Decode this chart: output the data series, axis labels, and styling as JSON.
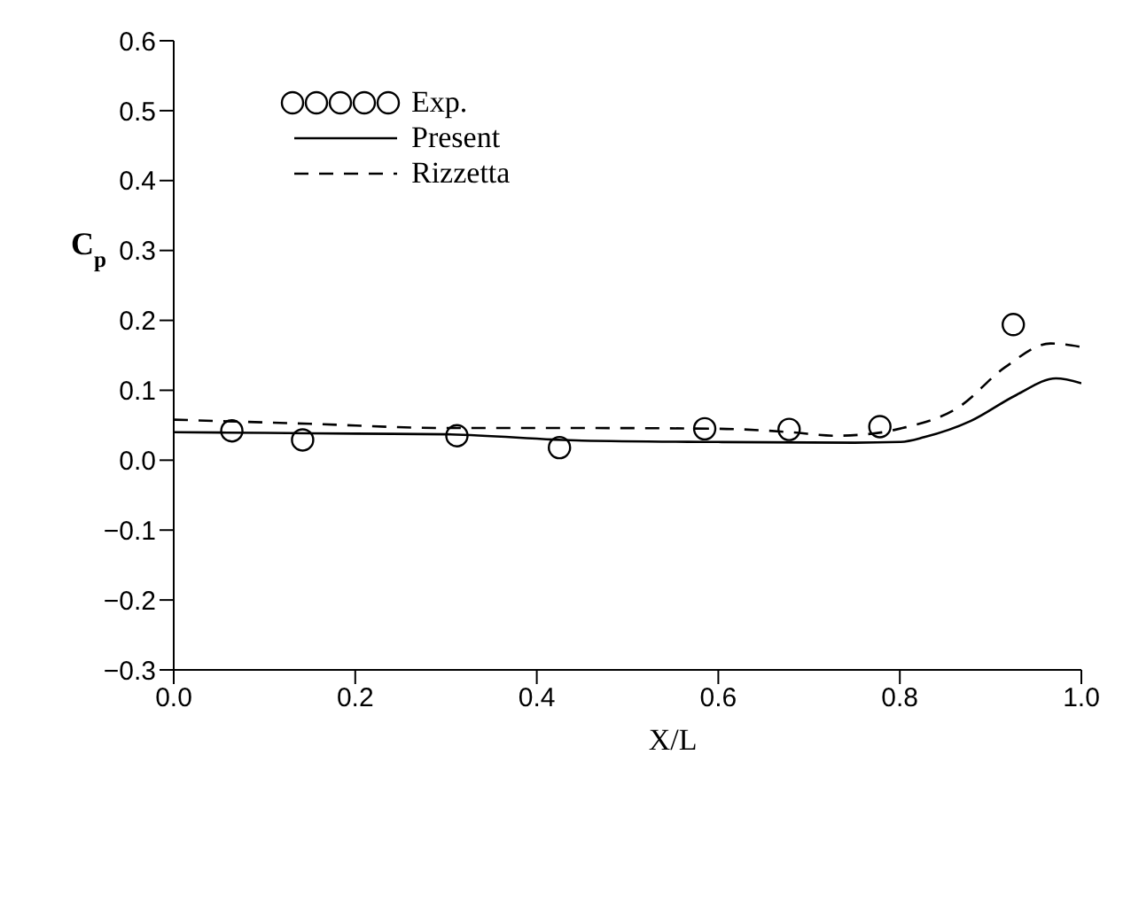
{
  "chart_data": {
    "type": "line",
    "xlabel": "X/L",
    "ylabel": "C$_{p}$",
    "xlim": [
      0,
      1
    ],
    "xticks": [
      {
        "value": 0,
        "label": "0.0"
      },
      0.2,
      0.4,
      0.6,
      0.8,
      {
        "value": 1,
        "label": "1.0"
      }
    ],
    "ylim": [
      -0.3,
      0.6
    ],
    "yticks": [
      {
        "value": -0.3,
        "label": "−0.3"
      },
      {
        "value": -0.2,
        "label": "−0.2"
      },
      {
        "value": -0.1,
        "label": "−0.1"
      },
      {
        "value": 0,
        "label": "0.0"
      },
      0.1,
      0.2,
      0.3,
      0.4,
      0.5,
      0.6
    ],
    "grid": false,
    "legend": "top left",
    "series": [
      {
        "name": "Exp.",
        "type": "scatter",
        "marker": "circle",
        "color": "#000000",
        "x": [
          0.064,
          0.142,
          0.312,
          0.425,
          0.585,
          0.678,
          0.778,
          0.925
        ],
        "values": [
          0.042,
          0.029,
          0.035,
          0.018,
          0.045,
          0.044,
          0.048,
          0.194
        ]
      },
      {
        "name": "Present",
        "line_style": "solid",
        "color": "#000000",
        "x": [
          0,
          0.1,
          0.2,
          0.3,
          0.45,
          0.6,
          0.75,
          0.8,
          0.827,
          0.878,
          0.928,
          0.972,
          1.0
        ],
        "values": [
          0.04,
          0.039,
          0.038,
          0.037,
          0.028,
          0.026,
          0.025,
          0.026,
          0.033,
          0.056,
          0.093,
          0.117,
          0.11
        ]
      },
      {
        "name": "Rizzetta",
        "line_style": "dashed",
        "color": "#000000",
        "x": [
          0,
          0.15,
          0.3,
          0.45,
          0.6,
          0.68,
          0.728,
          0.77,
          0.803,
          0.865,
          0.916,
          0.966,
          1.0
        ],
        "values": [
          0.058,
          0.052,
          0.046,
          0.046,
          0.045,
          0.04,
          0.035,
          0.038,
          0.046,
          0.076,
          0.133,
          0.167,
          0.162
        ]
      }
    ]
  }
}
